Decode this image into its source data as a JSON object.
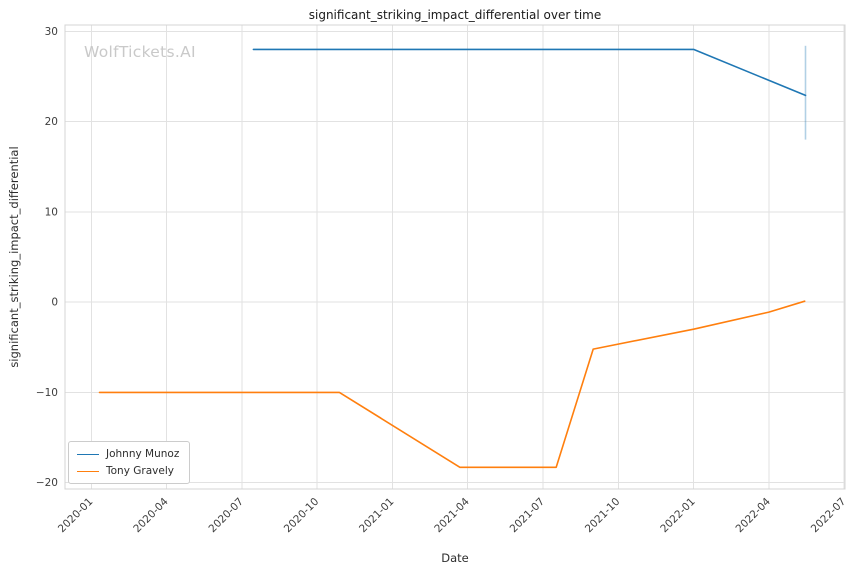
{
  "chart_data": {
    "type": "line",
    "title": "significant_striking_impact_differential over time",
    "xlabel": "Date",
    "ylabel": "significant_striking_impact_differential",
    "watermark": "WolfTickets.AI",
    "grid": true,
    "legend_position": "lower-left",
    "xlim": [
      "2019-11-30",
      "2022-07-02"
    ],
    "ylim": [
      -20.7,
      30.7
    ],
    "x_ticks": [
      "2020-01",
      "2020-04",
      "2020-07",
      "2020-10",
      "2021-01",
      "2021-04",
      "2021-07",
      "2021-10",
      "2022-01",
      "2022-04",
      "2022-07"
    ],
    "y_tick_values": [
      -20,
      -10,
      0,
      10,
      20,
      30
    ],
    "y_tick_labels": [
      "−20",
      "−10",
      "0",
      "10",
      "20",
      "30"
    ],
    "series": [
      {
        "name": "Johnny Munoz",
        "color": "#1f77b4",
        "points": [
          [
            "2020-07-15",
            28
          ],
          [
            "2022-01-01",
            28
          ],
          [
            "2022-05-15",
            22.9
          ]
        ]
      },
      {
        "name": "Tony Gravely",
        "color": "#ff7f0e",
        "points": [
          [
            "2020-01-11",
            -10
          ],
          [
            "2020-10-28",
            -10
          ],
          [
            "2021-03-22",
            -18.3
          ],
          [
            "2021-07-17",
            -18.3
          ],
          [
            "2021-09-01",
            -5.2
          ],
          [
            "2022-01-01",
            -3.0
          ],
          [
            "2022-04-01",
            -1.1
          ],
          [
            "2022-05-14",
            0.1
          ]
        ]
      }
    ],
    "error_bar": {
      "series": "Johnny Munoz",
      "date": "2022-05-15",
      "y_min": 18.0,
      "y_max": 28.4,
      "color": "rgba(31,119,180,0.35)"
    }
  }
}
